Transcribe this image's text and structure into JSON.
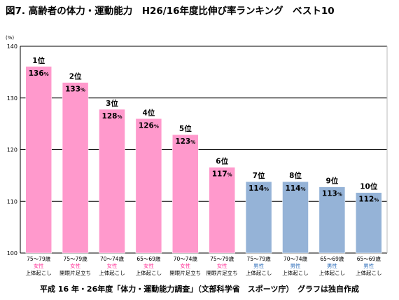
{
  "colors": {
    "female_bar": "#ff99cc",
    "male_bar": "#95b3d7",
    "female_text": "#ff3399",
    "male_text": "#2f6eba",
    "grid": "#000000"
  },
  "chart_data": {
    "type": "bar",
    "title": "図7.  高齢者の体力・運動能力　H26/16年度比伸び率ランキング　ベスト10",
    "y_unit_label": "(%)",
    "ylim": [
      100,
      140
    ],
    "yticks": [
      "100",
      "110",
      "120",
      "130",
      "140"
    ],
    "grid": true,
    "footnote": "平成 16 年・26年度「体力・運動能力調査」（文部科学省　スポーツ庁）　グラフは独自作成",
    "bars": [
      {
        "rank": "1位",
        "value": 136.1,
        "value_label": "136",
        "value_unit": "%",
        "age": "75～79歳",
        "sex": "女性",
        "sex_key": "female",
        "test": "上体起こし"
      },
      {
        "rank": "2位",
        "value": 133.0,
        "value_label": "133",
        "value_unit": "%",
        "age": "75～79歳",
        "sex": "女性",
        "sex_key": "female",
        "test": "開眼片足立ち"
      },
      {
        "rank": "3位",
        "value": 127.8,
        "value_label": "128",
        "value_unit": "%",
        "age": "70～74歳",
        "sex": "女性",
        "sex_key": "female",
        "test": "上体起こし"
      },
      {
        "rank": "4位",
        "value": 126.0,
        "value_label": "126",
        "value_unit": "%",
        "age": "65～69歳",
        "sex": "女性",
        "sex_key": "female",
        "test": "上体起こし"
      },
      {
        "rank": "5位",
        "value": 122.9,
        "value_label": "123",
        "value_unit": "%",
        "age": "70～74歳",
        "sex": "女性",
        "sex_key": "female",
        "test": "開眼片足立ち"
      },
      {
        "rank": "6位",
        "value": 116.6,
        "value_label": "117",
        "value_unit": "%",
        "age": "75～79歳",
        "sex": "女性",
        "sex_key": "female",
        "test": "開眼片足立ち"
      },
      {
        "rank": "7位",
        "value": 113.8,
        "value_label": "114",
        "value_unit": "%",
        "age": "75～79歳",
        "sex": "男性",
        "sex_key": "male",
        "test": "上体起こし"
      },
      {
        "rank": "8位",
        "value": 113.8,
        "value_label": "114",
        "value_unit": "%",
        "age": "70～74歳",
        "sex": "男性",
        "sex_key": "male",
        "test": "上体起こし"
      },
      {
        "rank": "9位",
        "value": 112.8,
        "value_label": "113",
        "value_unit": "%",
        "age": "65～69歳",
        "sex": "男性",
        "sex_key": "male",
        "test": "上体起こし"
      },
      {
        "rank": "10位",
        "value": 111.7,
        "value_label": "112",
        "value_unit": "%",
        "age": "65～69歳",
        "sex": "男性",
        "sex_key": "male",
        "test": "上体起こし"
      }
    ]
  }
}
